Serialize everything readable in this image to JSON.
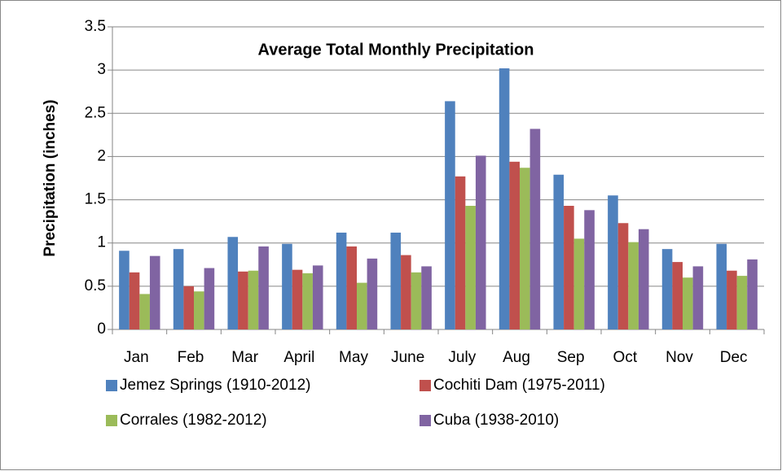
{
  "chart_data": {
    "type": "bar",
    "title": "Average Total Monthly Precipitation",
    "ylabel": "Precipitation (inches)",
    "categories": [
      "Jan",
      "Feb",
      "Mar",
      "April",
      "May",
      "June",
      "July",
      "Aug",
      "Sep",
      "Oct",
      "Nov",
      "Dec"
    ],
    "series": [
      {
        "name": "Jemez Springs (1910-2012)",
        "color": "#4f81bd",
        "values": [
          0.91,
          0.93,
          1.07,
          0.99,
          1.12,
          1.12,
          2.64,
          3.02,
          1.79,
          1.55,
          0.93,
          0.99
        ]
      },
      {
        "name": "Cochiti Dam (1975-2011)",
        "color": "#c0504d",
        "values": [
          0.66,
          0.5,
          0.67,
          0.69,
          0.96,
          0.86,
          1.77,
          1.94,
          1.43,
          1.23,
          0.78,
          0.68
        ]
      },
      {
        "name": "Corrales (1982-2012)",
        "color": "#9bbb59",
        "values": [
          0.41,
          0.44,
          0.68,
          0.65,
          0.54,
          0.66,
          1.43,
          1.87,
          1.05,
          1.01,
          0.6,
          0.62
        ]
      },
      {
        "name": "Cuba (1938-2010)",
        "color": "#8064a2",
        "values": [
          0.85,
          0.71,
          0.96,
          0.74,
          0.82,
          0.73,
          2.01,
          2.32,
          1.38,
          1.16,
          0.73,
          0.81
        ]
      }
    ],
    "ylim": [
      0,
      3.5
    ],
    "yticks": [
      0,
      0.5,
      1,
      1.5,
      2,
      2.5,
      3,
      3.5
    ],
    "grid": true,
    "legend": "bottom"
  }
}
